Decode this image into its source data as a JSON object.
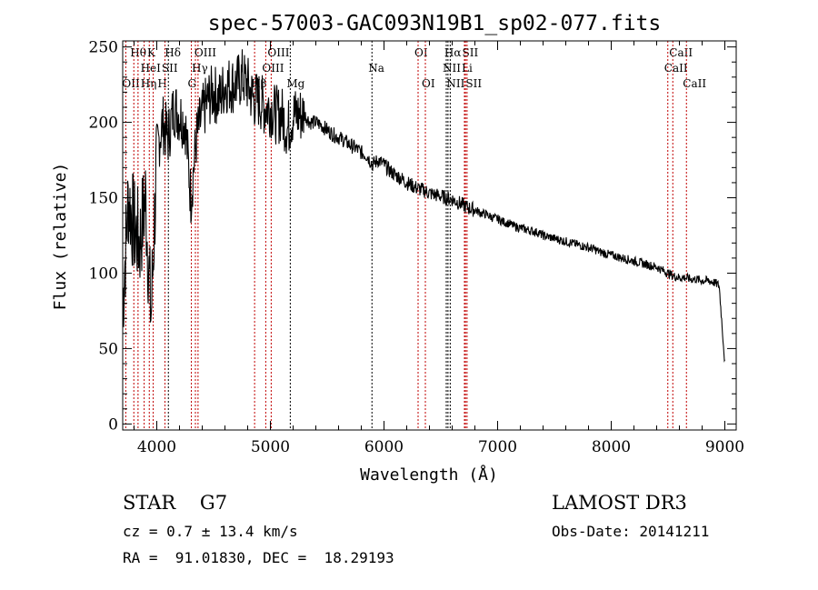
{
  "chart_data": {
    "type": "line",
    "title": "spec-57003-GAC093N19B1_sp02-077.fits",
    "xlabel": "Wavelength (Å)",
    "ylabel": "Flux (relative)",
    "xlim": [
      3700,
      9100
    ],
    "ylim": [
      -4,
      254
    ],
    "xticks": [
      4000,
      5000,
      6000,
      7000,
      8000,
      9000
    ],
    "yticks": [
      0,
      50,
      100,
      150,
      200,
      250
    ],
    "grid": false,
    "series": [
      {
        "name": "flux",
        "x": [
          3700,
          3750,
          3800,
          3850,
          3900,
          3950,
          4000,
          4050,
          4100,
          4150,
          4200,
          4250,
          4300,
          4350,
          4400,
          4450,
          4500,
          4550,
          4600,
          4650,
          4700,
          4750,
          4800,
          4850,
          4900,
          4950,
          5000,
          5050,
          5100,
          5150,
          5200,
          5250,
          5300,
          5350,
          5400,
          5450,
          5500,
          5550,
          5600,
          5650,
          5700,
          5750,
          5800,
          5850,
          5900,
          5950,
          6000,
          6050,
          6100,
          6150,
          6200,
          6250,
          6300,
          6350,
          6400,
          6450,
          6500,
          6550,
          6600,
          6650,
          6700,
          6750,
          6800,
          6850,
          6900,
          6950,
          7000,
          7050,
          7100,
          7150,
          7200,
          7250,
          7300,
          7350,
          7400,
          7450,
          7500,
          7550,
          7600,
          7650,
          7700,
          7750,
          7800,
          7850,
          7900,
          7950,
          8000,
          8050,
          8100,
          8150,
          8200,
          8250,
          8300,
          8350,
          8400,
          8450,
          8500,
          8550,
          8600,
          8650,
          8700,
          8750,
          8800,
          8850,
          8900,
          8950,
          9000
        ],
        "y": [
          80,
          150,
          130,
          120,
          150,
          70,
          180,
          200,
          190,
          210,
          205,
          200,
          150,
          190,
          205,
          215,
          220,
          215,
          225,
          225,
          225,
          230,
          225,
          215,
          215,
          210,
          210,
          205,
          205,
          195,
          205,
          205,
          205,
          200,
          200,
          198,
          195,
          192,
          190,
          188,
          185,
          183,
          180,
          178,
          172,
          175,
          172,
          168,
          165,
          163,
          160,
          158,
          156,
          155,
          153,
          152,
          151,
          150,
          149,
          147,
          145,
          143,
          142,
          140,
          139,
          137,
          136,
          134,
          133,
          131,
          130,
          129,
          128,
          127,
          125,
          124,
          123,
          122,
          121,
          120,
          119,
          118,
          117,
          116,
          114,
          113,
          112,
          111,
          110,
          109,
          108,
          107,
          106,
          105,
          104,
          102,
          100,
          98,
          97,
          97,
          96,
          96,
          95,
          95,
          94,
          92,
          40
        ]
      }
    ],
    "lines": [
      {
        "wl": 3727,
        "label": "OII",
        "row": 2,
        "color": "#c00000"
      },
      {
        "wl": 3798,
        "label": "Hθ",
        "row": 0,
        "color": "#c00000"
      },
      {
        "wl": 3835,
        "label": "Hη",
        "row": 2,
        "color": "#c00000"
      },
      {
        "wl": 3889,
        "label": "HeI",
        "row": 1,
        "color": "#c00000"
      },
      {
        "wl": 3934,
        "label": "K",
        "row": 0,
        "color": "#c00000"
      },
      {
        "wl": 3968,
        "label": "H",
        "row": 2,
        "color": "#c00000"
      },
      {
        "wl": 4072,
        "label": "SII",
        "row": 1,
        "color": "#c00000"
      },
      {
        "wl": 4102,
        "label": "Hδ",
        "row": 0,
        "color": "#000000"
      },
      {
        "wl": 4304,
        "label": "G",
        "row": 2,
        "color": "#c00000"
      },
      {
        "wl": 4340,
        "label": "Hγ",
        "row": 1,
        "color": "#c00000"
      },
      {
        "wl": 4363,
        "label": "OIII",
        "row": 0,
        "color": "#c00000"
      },
      {
        "wl": 4861,
        "label": "Hβ",
        "row": 2,
        "color": "#c00000"
      },
      {
        "wl": 4959,
        "label": "OIII",
        "row": 1,
        "color": "#c00000"
      },
      {
        "wl": 5007,
        "label": "OIII",
        "row": 0,
        "color": "#c00000"
      },
      {
        "wl": 5175,
        "label": "Mg",
        "row": 2,
        "color": "#000000"
      },
      {
        "wl": 5894,
        "label": "Na",
        "row": 1,
        "color": "#000000"
      },
      {
        "wl": 6300,
        "label": "OI",
        "row": 0,
        "color": "#c00000"
      },
      {
        "wl": 6364,
        "label": "OI",
        "row": 2,
        "color": "#c00000"
      },
      {
        "wl": 6548,
        "label": "NII",
        "row": 1,
        "color": "#000000"
      },
      {
        "wl": 6563,
        "label": "Hα",
        "row": 0,
        "color": "#000000"
      },
      {
        "wl": 6583,
        "label": "NII",
        "row": 2,
        "color": "#000000"
      },
      {
        "wl": 6708,
        "label": "Li",
        "row": 1,
        "color": "#c00000"
      },
      {
        "wl": 6717,
        "label": "SII",
        "row": 0,
        "color": "#c00000"
      },
      {
        "wl": 6731,
        "label": "SII",
        "row": 2,
        "color": "#c00000"
      },
      {
        "wl": 8498,
        "label": "CaII",
        "row": 1,
        "color": "#c00000"
      },
      {
        "wl": 8542,
        "label": "CaII",
        "row": 0,
        "color": "#c00000"
      },
      {
        "wl": 8662,
        "label": "CaII",
        "row": 2,
        "color": "#c00000"
      }
    ]
  },
  "info": {
    "class": "STAR    G7",
    "survey": "LAMOST DR3",
    "cz": "cz = 0.7 ± 13.4 km/s",
    "obs_date": "Obs-Date: 20141211",
    "coords": "RA =  91.01830, DEC =  18.29193"
  }
}
